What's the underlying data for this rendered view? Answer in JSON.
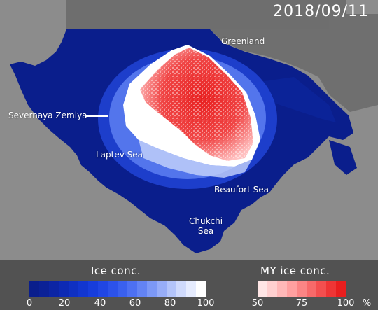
{
  "map": {
    "date": "2018/09/11",
    "labels": {
      "greenland": "Greenland",
      "severnaya_zemlya": "Severnaya Zemlya",
      "laptev_sea": "Laptev Sea",
      "beaufort_sea": "Beaufort Sea",
      "chukchi_line1": "Chukchi",
      "chukchi_line2": "Sea"
    },
    "colors": {
      "land": "#8c8c8c",
      "ocean": "#0a1e8c",
      "ice_high": "#ffffff",
      "my_ice": "#ee2222",
      "legend_bg": "#525252"
    }
  },
  "legend": {
    "ice_conc": {
      "title": "Ice conc.",
      "ticks": [
        "0",
        "20",
        "40",
        "60",
        "80",
        "100"
      ],
      "colors": [
        "#0a1e8c",
        "#0b2196",
        "#0c25a4",
        "#0d2ab4",
        "#0f30c2",
        "#1236d0",
        "#173ddc",
        "#2046e4",
        "#2c52ea",
        "#3a60ee",
        "#4d70f2",
        "#6383f4",
        "#7c98f6",
        "#97adf8",
        "#b3c4fa",
        "#cfdafc",
        "#e6ecfe",
        "#ffffff"
      ]
    },
    "my_ice_conc": {
      "title": "MY ice conc.",
      "ticks": [
        "50",
        "75",
        "100"
      ],
      "unit": "%",
      "colors": [
        "#ffe6e6",
        "#ffd0d0",
        "#ffb8b8",
        "#ffa0a0",
        "#fb8585",
        "#f76a6a",
        "#f34f4f",
        "#ee3535",
        "#e81e1e"
      ]
    }
  }
}
